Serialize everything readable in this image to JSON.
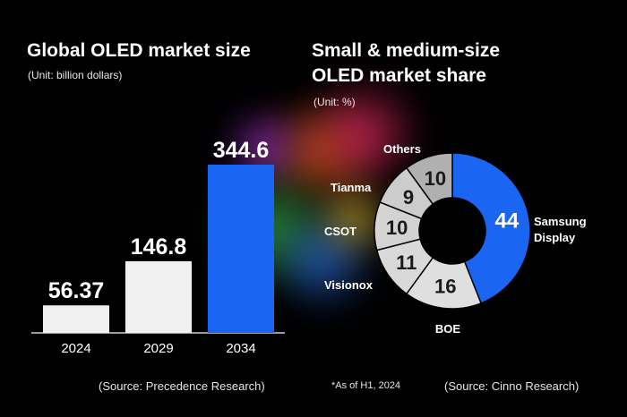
{
  "left_title": "Global OLED market size",
  "left_unit": "(Unit: billion dollars)",
  "left_source": "(Source: Precedence Research)",
  "right_title_line1": "Small & medium-size",
  "right_title_line2": "OLED market share",
  "right_unit": "(Unit: %)",
  "right_note": "*As of H1, 2024",
  "right_source": "(Source: Cinno Research)",
  "colors": {
    "bar_light": "#f0f0f0",
    "bar_highlight": "#1a66f2",
    "donut_highlight": "#1a66f2"
  },
  "chart_data": [
    {
      "type": "bar",
      "title": "Global OLED market size",
      "categories": [
        "2024",
        "2029",
        "2034"
      ],
      "values": [
        56.37,
        146.8,
        344.6
      ],
      "value_labels": [
        "56.37",
        "146.8",
        "344.6"
      ],
      "ylim": [
        0,
        344.6
      ],
      "grid": false,
      "highlight_index": 2
    },
    {
      "type": "pie",
      "title": "Small & medium-size OLED market share",
      "donut": true,
      "slices": [
        {
          "label": "Samsung Display",
          "value": 44
        },
        {
          "label": "BOE",
          "value": 16
        },
        {
          "label": "Visionox",
          "value": 11
        },
        {
          "label": "CSOT",
          "value": 10
        },
        {
          "label": "Tianma",
          "value": 9
        },
        {
          "label": "Others",
          "value": 10
        }
      ],
      "slice_colors": [
        "#1a66f2",
        "#f0f0f0",
        "#eaeaea",
        "#e2e2e2",
        "#dcdcdc",
        "#bdbdbd"
      ]
    }
  ]
}
